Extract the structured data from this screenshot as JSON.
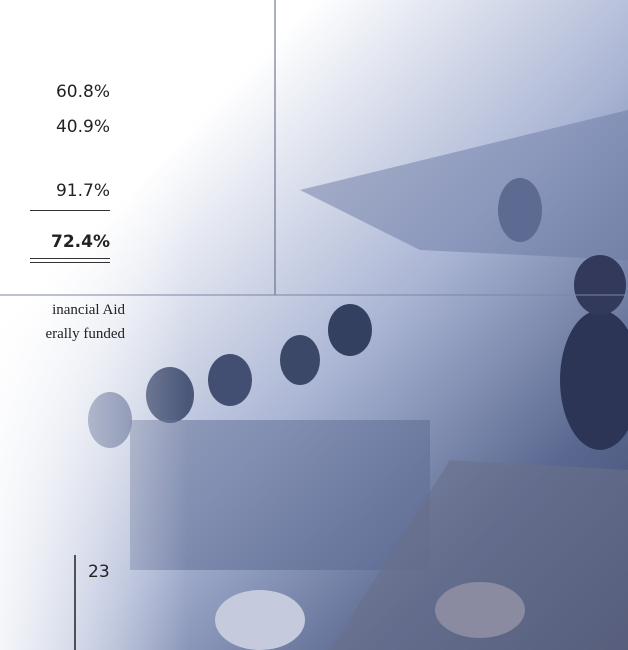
{
  "figures": [
    "60.8%",
    "40.9%",
    "91.7%"
  ],
  "total": "72.4%",
  "footnote_lines": [
    "inancial Aid",
    "erally funded"
  ],
  "page_number": "23"
}
